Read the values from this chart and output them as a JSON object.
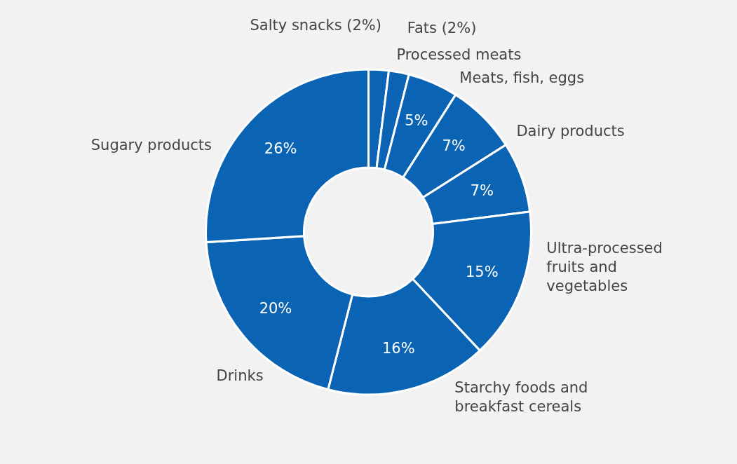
{
  "chart_data": {
    "type": "donut",
    "categories": [
      "Salty snacks (2%)",
      "Fats (2%)",
      "Processed meats",
      "Meats, fish, eggs",
      "Dairy products",
      "Ultra-processed fruits and vegetables",
      "Starchy foods and breakfast cereals",
      "Drinks",
      "Sugary products"
    ],
    "values": [
      2,
      2,
      5,
      7,
      7,
      15,
      16,
      20,
      26
    ],
    "value_labels": [
      null,
      null,
      "5%",
      "7%",
      "7%",
      "15%",
      "16%",
      "20%",
      "26%"
    ],
    "colors": [
      "#0b63b3",
      "#0b63b3",
      "#0b63b3",
      "#0b63b3",
      "#0b63b3",
      "#0b63b3",
      "#0b63b3",
      "#0b63b3",
      "#0b63b3"
    ]
  }
}
